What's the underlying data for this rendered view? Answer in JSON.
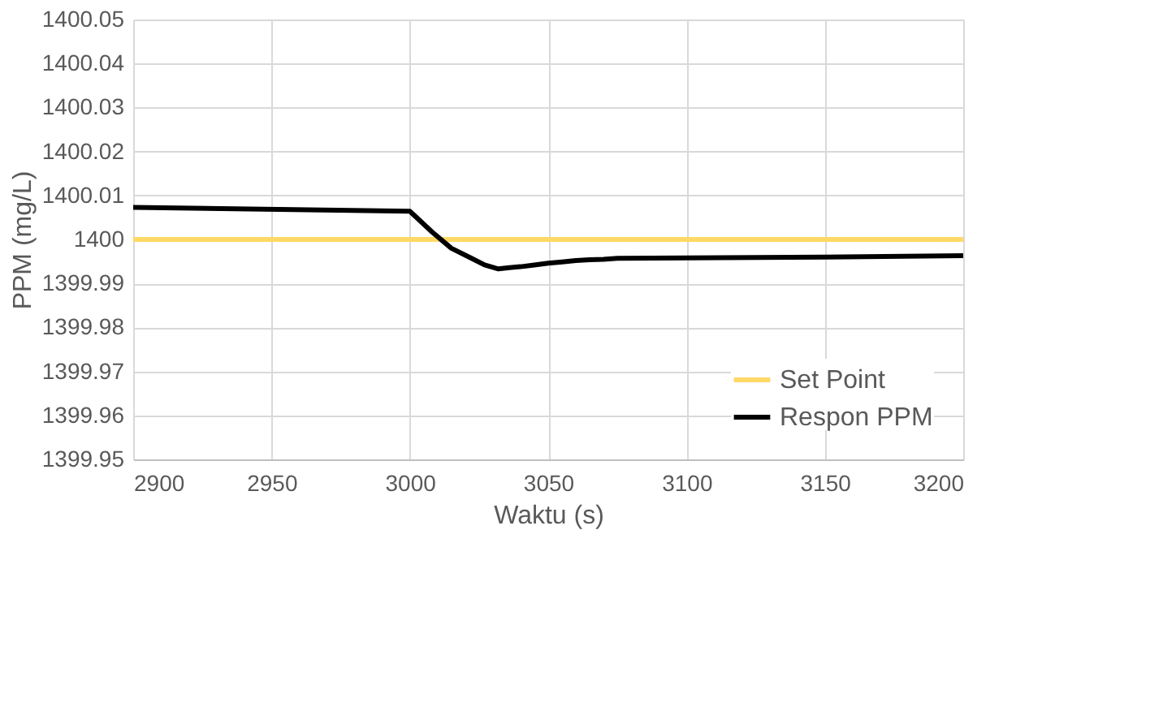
{
  "chart_data": {
    "type": "line",
    "xlabel": "Waktu (s)",
    "ylabel": "PPM (mg/L)",
    "xlim": [
      2900,
      3200
    ],
    "xticks": [
      2900,
      2950,
      3000,
      3050,
      3100,
      3150,
      3200
    ],
    "ylim": [
      1399.95,
      1400.05
    ],
    "yticks": [
      1399.95,
      1399.96,
      1399.97,
      1399.98,
      1399.99,
      1400,
      1400.01,
      1400.02,
      1400.03,
      1400.04,
      1400.05
    ],
    "grid": true,
    "legend": "bottom right",
    "marker": "none",
    "line_style": "solid",
    "series": [
      {
        "name": "Set Point",
        "color": "#ffd966",
        "x": [
          2900,
          3200
        ],
        "values": [
          1400,
          1400
        ]
      },
      {
        "name": "Respon PPM",
        "color": "#000000",
        "x": [
          2900,
          3000,
          3008,
          3015,
          3022,
          3027,
          3032,
          3036,
          3040,
          3045,
          3050,
          3055,
          3060,
          3065,
          3070,
          3075,
          3100,
          3150,
          3200
        ],
        "values": [
          1400.0073,
          1400.0064,
          1400.0017,
          1399.998,
          1399.9958,
          1399.9942,
          1399.9933,
          1399.9936,
          1399.9938,
          1399.9942,
          1399.9946,
          1399.9949,
          1399.9952,
          1399.9954,
          1399.9955,
          1399.9957,
          1399.9958,
          1399.996,
          1399.9963
        ]
      }
    ]
  }
}
